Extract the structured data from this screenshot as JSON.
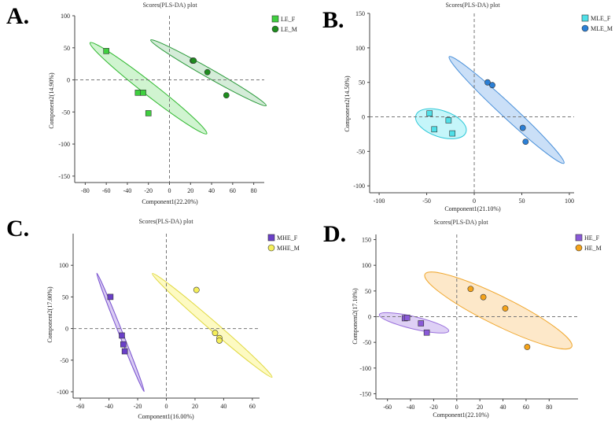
{
  "chart_data": [
    {
      "panel": "A.",
      "type": "scatter",
      "title": "Scores(PLS-DA) plot",
      "xlabel": "Component1(22.20%)",
      "ylabel": "Component2(14.90%)",
      "xlim": [
        -90,
        90
      ],
      "ylim": [
        -160,
        100
      ],
      "xticks": [
        -80,
        -60,
        -40,
        -20,
        0,
        20,
        40,
        60,
        80
      ],
      "yticks": [
        -150,
        -100,
        -50,
        0,
        50,
        100
      ],
      "legend": "top-right",
      "series": [
        {
          "name": "LE_F",
          "marker": "square",
          "color": "#3fcf3f",
          "fill": "rgba(100,220,100,0.30)",
          "edge": "#2eb82e",
          "points": [
            [
              -60,
              45
            ],
            [
              -30,
              -20
            ],
            [
              -25,
              -20
            ],
            [
              -20,
              -52
            ]
          ],
          "ellipse": {
            "cx": -20,
            "cy": -13,
            "rx": 90,
            "ry": 10,
            "angle": -52
          }
        },
        {
          "name": "LE_M",
          "marker": "circle",
          "color": "#1e8c1e",
          "fill": "rgba(40,160,60,0.20)",
          "edge": "#2a9a3a",
          "points": [
            [
              22,
              30
            ],
            [
              23,
              30
            ],
            [
              36,
              12
            ],
            [
              54,
              -24
            ]
          ],
          "ellipse": {
            "cx": 37,
            "cy": 11,
            "rx": 75,
            "ry": 7,
            "angle": -43
          }
        }
      ]
    },
    {
      "panel": "B.",
      "type": "scatter",
      "title": "Scores(PLS-DA) plot",
      "xlabel": "Component1(21.10%)",
      "ylabel": "Component2(14.50%)",
      "xlim": [
        -110,
        105
      ],
      "ylim": [
        -110,
        150
      ],
      "xticks": [
        -100,
        -50,
        0,
        50,
        100
      ],
      "yticks": [
        -100,
        -50,
        0,
        50,
        100,
        150
      ],
      "legend": "top-right",
      "series": [
        {
          "name": "MLE_F",
          "marker": "square",
          "color": "#4fe0e8",
          "fill": "rgba(90,230,240,0.35)",
          "edge": "#2fc8d8",
          "points": [
            [
              -47,
              5
            ],
            [
              -42,
              -18
            ],
            [
              -27,
              -5
            ],
            [
              -23,
              -24
            ]
          ],
          "ellipse": {
            "cx": -35,
            "cy": -10,
            "rx": 29,
            "ry": 19,
            "angle": -25
          }
        },
        {
          "name": "MLE_M",
          "marker": "circle",
          "color": "#2b7fd6",
          "fill": "rgba(80,150,230,0.30)",
          "edge": "#4a90d9",
          "points": [
            [
              14,
              50
            ],
            [
              19,
              46
            ],
            [
              51,
              -16
            ],
            [
              54,
              -36
            ]
          ],
          "ellipse": {
            "cx": 34,
            "cy": 10,
            "rx": 98,
            "ry": 10,
            "angle": -52
          }
        }
      ]
    },
    {
      "panel": "C.",
      "type": "scatter",
      "title": "Scores(PLS-DA) plot",
      "xlabel": "Component1(16.00%)",
      "ylabel": "Component2(17.00%)",
      "xlim": [
        -65,
        65
      ],
      "ylim": [
        -110,
        150
      ],
      "xticks": [
        -60,
        -40,
        -20,
        0,
        20,
        40,
        60
      ],
      "yticks": [
        -100,
        -50,
        0,
        50,
        100
      ],
      "legend": "top-right",
      "series": [
        {
          "name": "MHE_F",
          "marker": "square",
          "color": "#6a3fc8",
          "fill": "rgba(150,110,220,0.35)",
          "edge": "#7b55d0",
          "points": [
            [
              -39,
              50
            ],
            [
              -31,
              -11
            ],
            [
              -30,
              -25
            ],
            [
              -29,
              -36
            ]
          ],
          "ellipse": {
            "cx": -32,
            "cy": -6,
            "rx": 95,
            "ry": 3,
            "angle": -80
          }
        },
        {
          "name": "MHE_M",
          "marker": "circle",
          "color": "#f5ef5a",
          "fill": "rgba(250,245,120,0.45)",
          "edge": "#e0d840",
          "points": [
            [
              21,
              61
            ],
            [
              34,
              -7
            ],
            [
              37,
              -15
            ],
            [
              37,
              -19
            ]
          ],
          "ellipse": {
            "cx": 32,
            "cy": 5,
            "rx": 92,
            "ry": 7,
            "angle": -63
          }
        }
      ]
    },
    {
      "panel": "D.",
      "type": "scatter",
      "title": "Scores(PLS-DA) plot",
      "xlabel": "Component1(22.10%)",
      "ylabel": "Component2(17.10%)",
      "xlim": [
        -70,
        105
      ],
      "ylim": [
        -160,
        160
      ],
      "xticks": [
        -60,
        -40,
        -20,
        0,
        20,
        40,
        60,
        80
      ],
      "yticks": [
        -150,
        -100,
        -50,
        0,
        50,
        100,
        150
      ],
      "legend": "top-right",
      "series": [
        {
          "name": "HE_F",
          "marker": "square",
          "color": "#8a5ad8",
          "fill": "rgba(160,120,225,0.35)",
          "edge": "#9a70dc",
          "points": [
            [
              -45,
              -3
            ],
            [
              -43,
              -2
            ],
            [
              -31,
              -13
            ],
            [
              -26,
              -31
            ]
          ],
          "ellipse": {
            "cx": -37,
            "cy": -12,
            "rx": 34,
            "ry": 12,
            "angle": -28
          }
        },
        {
          "name": "HE_M",
          "marker": "circle",
          "color": "#f5a31a",
          "fill": "rgba(250,190,100,0.35)",
          "edge": "#f0a830",
          "points": [
            [
              12,
              54
            ],
            [
              23,
              38
            ],
            [
              42,
              16
            ],
            [
              61,
              -59
            ]
          ],
          "ellipse": {
            "cx": 36,
            "cy": 12,
            "rx": 95,
            "ry": 28,
            "angle": -48
          }
        }
      ]
    }
  ]
}
